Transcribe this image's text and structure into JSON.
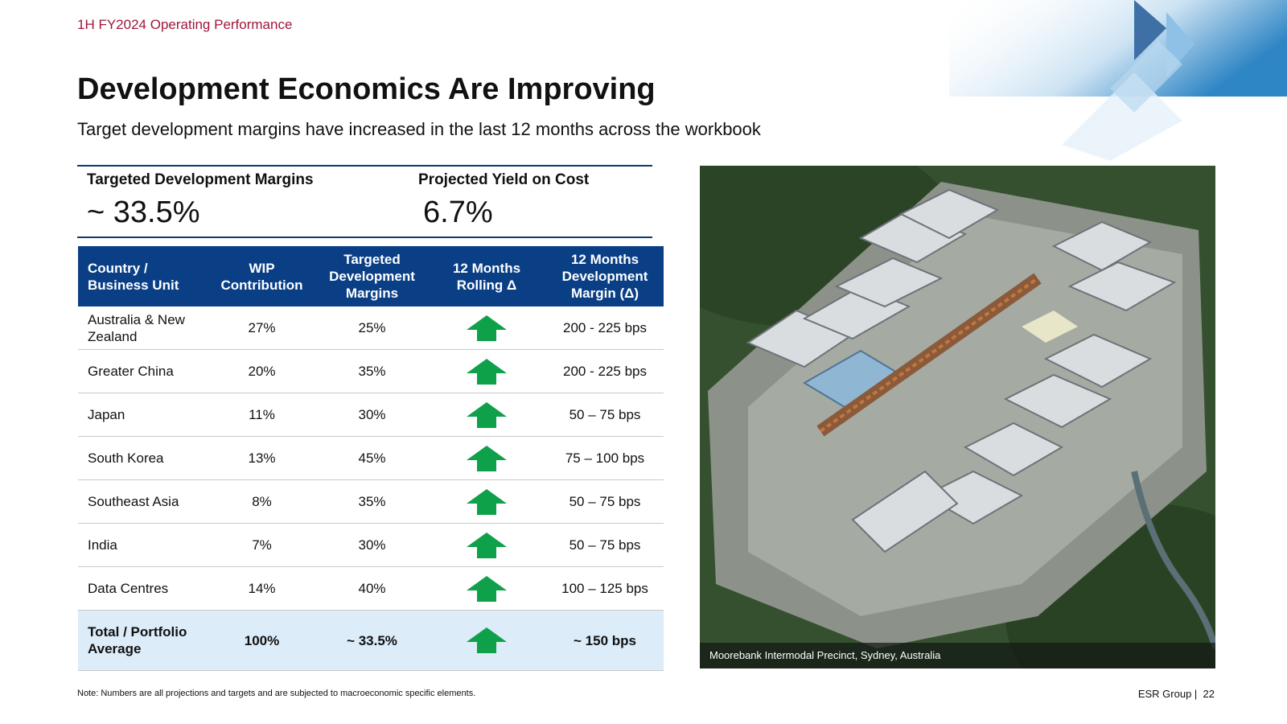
{
  "header": {
    "section": "1H FY2024 Operating Performance",
    "title": "Development Economics Are Improving",
    "subtitle": "Target development margins have increased in the last 12 months across the workbook"
  },
  "kpis": [
    {
      "label": "Targeted Development Margins",
      "value": "~ 33.5%"
    },
    {
      "label": "Projected Yield on Cost",
      "value": "6.7%"
    }
  ],
  "table": {
    "headers": {
      "country": "Country  / Business Unit",
      "wip": "WIP Contribution",
      "margin": "Targeted Development Margins",
      "rolling": "12 Months Rolling Δ",
      "delta": "12 Months Development Margin (Δ)"
    },
    "rows": [
      {
        "country": "Australia & New Zealand",
        "wip": "27%",
        "margin": "25%",
        "trend": "up",
        "delta": "200  - 225 bps"
      },
      {
        "country": "Greater China",
        "wip": "20%",
        "margin": "35%",
        "trend": "up",
        "delta": "200  - 225 bps"
      },
      {
        "country": "Japan",
        "wip": "11%",
        "margin": "30%",
        "trend": "up",
        "delta": "50 – 75 bps"
      },
      {
        "country": "South Korea",
        "wip": "13%",
        "margin": "45%",
        "trend": "up",
        "delta": "75 – 100 bps"
      },
      {
        "country": "Southeast Asia",
        "wip": "8%",
        "margin": "35%",
        "trend": "up",
        "delta": "50 – 75 bps"
      },
      {
        "country": "India",
        "wip": "7%",
        "margin": "30%",
        "trend": "up",
        "delta": "50 – 75 bps"
      },
      {
        "country": "Data Centres",
        "wip": "14%",
        "margin": "40%",
        "trend": "up",
        "delta": "100 – 125 bps"
      }
    ],
    "total": {
      "country": "Total / Portfolio Average",
      "wip": "100%",
      "margin": "~ 33.5%",
      "trend": "up",
      "delta": "~ 150 bps"
    }
  },
  "photo": {
    "caption": "Moorebank Intermodal Precinct, Sydney, Australia"
  },
  "footnote": "Note: Numbers are all projections and targets and are subjected to macroeconomic specific elements.",
  "footer": {
    "company": "ESR Group |",
    "page": "22"
  },
  "colors": {
    "accent": "#a0173a",
    "header_blue": "#0a3f86",
    "arrow_green": "#0fa04a",
    "total_row": "#dcecf8"
  }
}
